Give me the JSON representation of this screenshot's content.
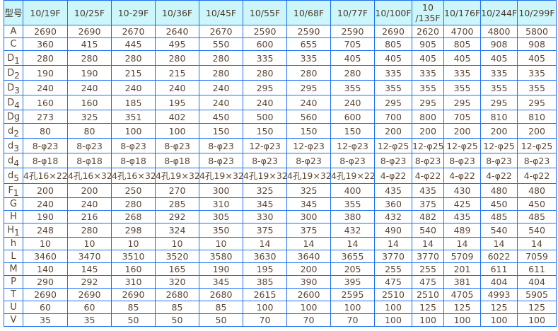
{
  "header": {
    "corner": "型号",
    "models": [
      "10/19F",
      "10/25F",
      "10-29F",
      "10/36F",
      "10/45F",
      "10/55F",
      "10/68F",
      "10/77F",
      "10/100F",
      "10\n/135F",
      "10/176F",
      "10/244F",
      "10/299F"
    ]
  },
  "rows": [
    {
      "label": "A",
      "sub": "",
      "values": [
        "2690",
        "2690",
        "2670",
        "2640",
        "2670",
        "2590",
        "2590",
        "2590",
        "2690",
        "2620",
        "4700",
        "4800",
        "5800"
      ]
    },
    {
      "label": "C",
      "sub": "",
      "values": [
        "360",
        "415",
        "445",
        "495",
        "550",
        "600",
        "655",
        "705",
        "805",
        "905",
        "805",
        "908",
        "908"
      ]
    },
    {
      "label": "D",
      "sub": "1",
      "values": [
        "280",
        "280",
        "280",
        "280",
        "280",
        "335",
        "335",
        "405",
        "405",
        "405",
        "405",
        "405",
        "405"
      ]
    },
    {
      "label": "D",
      "sub": "2",
      "values": [
        "190",
        "190",
        "215",
        "215",
        "280",
        "280",
        "280",
        "280",
        "335",
        "335",
        "335",
        "335",
        "335"
      ]
    },
    {
      "label": "D",
      "sub": "3",
      "values": [
        "240",
        "240",
        "240",
        "240",
        "240",
        "295",
        "295",
        "355",
        "355",
        "355",
        "355",
        "355",
        "355"
      ]
    },
    {
      "label": "D",
      "sub": "4",
      "values": [
        "160",
        "160",
        "185",
        "195",
        "240",
        "240",
        "240",
        "240",
        "295",
        "295",
        "295",
        "295",
        "295"
      ]
    },
    {
      "label": "Dg",
      "sub": "",
      "values": [
        "273",
        "325",
        "351",
        "402",
        "450",
        "500",
        "560",
        "600",
        "700",
        "800",
        "705",
        "810",
        "810"
      ]
    },
    {
      "label": "d",
      "sub": "2",
      "values": [
        "80",
        "80",
        "100",
        "100",
        "150",
        "150",
        "150",
        "150",
        "200",
        "200",
        "200",
        "200",
        "200"
      ]
    },
    {
      "label": "d",
      "sub": "3",
      "values": [
        "8-φ23",
        "8-φ23",
        "8-φ23",
        "8-φ23",
        "8-φ23",
        "12-φ23",
        "12-φ23",
        "12-φ23",
        "12-φ25",
        "12-φ25",
        "12-φ25",
        "12-φ25",
        "12-φ25"
      ]
    },
    {
      "label": "d",
      "sub": "4",
      "values": [
        "8-φ18",
        "8-φ18",
        "8-φ18",
        "8-φ18",
        "8-φ23",
        "8-φ23",
        "8-φ23",
        "8-φ23",
        "8-φ23",
        "8-φ23",
        "8-φ23",
        "8-φ23",
        "8-φ23"
      ]
    },
    {
      "label": "d",
      "sub": "5",
      "values": [
        "4孔16×22",
        "4孔16×32",
        "4孔16×32",
        "4孔19×32",
        "4孔19×32",
        "4孔19×32",
        "4孔19×32",
        "4孔19×22",
        "4-φ22",
        "4-φ22",
        "4-φ22",
        "4-φ22",
        "4-φ22"
      ]
    },
    {
      "label": "F",
      "sub": "1",
      "values": [
        "200",
        "200",
        "250",
        "270",
        "300",
        "325",
        "325",
        "400",
        "435",
        "435",
        "430",
        "480",
        "480"
      ]
    },
    {
      "label": "G",
      "sub": "",
      "values": [
        "240",
        "240",
        "280",
        "285",
        "310",
        "345",
        "345",
        "355",
        "360",
        "375",
        "425",
        "450",
        "450"
      ]
    },
    {
      "label": "H",
      "sub": "",
      "values": [
        "190",
        "216",
        "268",
        "292",
        "305",
        "330",
        "300",
        "380",
        "432",
        "482",
        "435",
        "485",
        "485"
      ]
    },
    {
      "label": "H",
      "sub": "1",
      "values": [
        "248",
        "280",
        "298",
        "324",
        "350",
        "375",
        "375",
        "432",
        "490",
        "540",
        "489",
        "540",
        "540"
      ]
    },
    {
      "label": "h",
      "sub": "",
      "values": [
        "10",
        "10",
        "10",
        "10",
        "10",
        "14",
        "14",
        "14",
        "14",
        "14",
        "14",
        "14",
        "14"
      ]
    },
    {
      "label": "L",
      "sub": "",
      "values": [
        "3460",
        "3470",
        "3510",
        "3520",
        "3580",
        "3630",
        "3640",
        "3655",
        "3770",
        "3770",
        "5709",
        "6022",
        "7059"
      ]
    },
    {
      "label": "M",
      "sub": "",
      "values": [
        "140",
        "145",
        "160",
        "165",
        "190",
        "195",
        "200",
        "205",
        "255",
        "255",
        "201",
        "611",
        "611"
      ]
    },
    {
      "label": "P",
      "sub": "",
      "values": [
        "290",
        "292",
        "310",
        "320",
        "345",
        "385",
        "390",
        "395",
        "475",
        "475",
        "381",
        "404",
        "404"
      ]
    },
    {
      "label": "T",
      "sub": "",
      "values": [
        "2690",
        "2690",
        "2690",
        "2680",
        "2680",
        "2615",
        "2600",
        "2595",
        "2510",
        "2510",
        "4705",
        "4993",
        "5905"
      ]
    },
    {
      "label": "U",
      "sub": "",
      "values": [
        "60",
        "60",
        "85",
        "85",
        "85",
        "100",
        "100",
        "100",
        "100",
        "125",
        "125",
        "125",
        "125"
      ]
    },
    {
      "label": "V",
      "sub": "",
      "values": [
        "35",
        "35",
        "50",
        "50",
        "50",
        "70",
        "70",
        "70",
        "100",
        "100",
        "100",
        "100",
        "100"
      ]
    }
  ],
  "colors": {
    "border": "#1f6ff0",
    "header_bg": "#ccf6fa",
    "text": "#5b4636"
  }
}
